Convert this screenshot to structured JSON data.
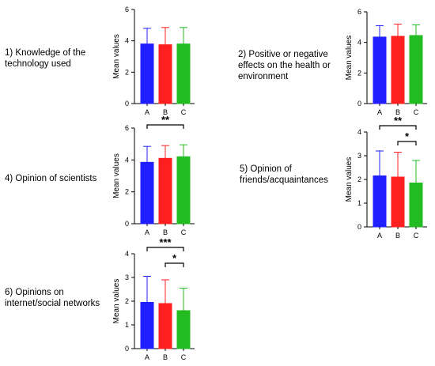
{
  "labels": [
    "1) Knowledge of the\ntechnology used",
    "2) Positive or negative\neffects on the health or\nenvironment",
    "4) Opinion of scientists",
    "5) Opinion of\nfriends/acquaintances",
    "6) Opinions on\ninternet/social networks"
  ],
  "colors": {
    "A": "#1f1fff",
    "B": "#ff1f1f",
    "C": "#22bb22"
  },
  "chart_data": [
    {
      "type": "bar",
      "categories": [
        "A",
        "B",
        "C"
      ],
      "values": [
        3.8,
        3.75,
        3.8
      ],
      "error": [
        1.0,
        1.1,
        1.05
      ],
      "ylabel": "Mean values",
      "ylim": [
        0,
        6
      ],
      "yticks": [
        0,
        2,
        4,
        6
      ],
      "significance": []
    },
    {
      "type": "bar",
      "categories": [
        "A",
        "B",
        "C"
      ],
      "values": [
        4.35,
        4.4,
        4.45
      ],
      "error": [
        0.75,
        0.8,
        0.7
      ],
      "ylabel": "Mean values",
      "ylim": [
        0,
        6
      ],
      "yticks": [
        0,
        2,
        4,
        6
      ],
      "significance": []
    },
    {
      "type": "bar",
      "categories": [
        "A",
        "B",
        "C"
      ],
      "values": [
        3.85,
        4.1,
        4.2
      ],
      "error": [
        1.0,
        0.8,
        0.75
      ],
      "ylabel": "Mean values",
      "ylim": [
        0,
        6
      ],
      "yticks": [
        0,
        2,
        4,
        6
      ],
      "significance": [
        {
          "from": "A",
          "to": "C",
          "label": "**"
        }
      ]
    },
    {
      "type": "bar",
      "categories": [
        "A",
        "B",
        "C"
      ],
      "values": [
        2.15,
        2.1,
        1.85
      ],
      "error": [
        1.05,
        1.05,
        0.95
      ],
      "ylabel": "Mean values",
      "ylim": [
        0,
        4
      ],
      "yticks": [
        0,
        1,
        2,
        3,
        4
      ],
      "significance": [
        {
          "from": "A",
          "to": "C",
          "label": "**"
        },
        {
          "from": "B",
          "to": "C",
          "label": "*"
        }
      ]
    },
    {
      "type": "bar",
      "categories": [
        "A",
        "B",
        "C"
      ],
      "values": [
        1.95,
        1.9,
        1.6
      ],
      "error": [
        1.1,
        1.0,
        0.95
      ],
      "ylabel": "Mean values",
      "ylim": [
        0,
        4
      ],
      "yticks": [
        0,
        1,
        2,
        3,
        4
      ],
      "significance": [
        {
          "from": "A",
          "to": "C",
          "label": "***"
        },
        {
          "from": "B",
          "to": "C",
          "label": "*"
        }
      ]
    }
  ]
}
